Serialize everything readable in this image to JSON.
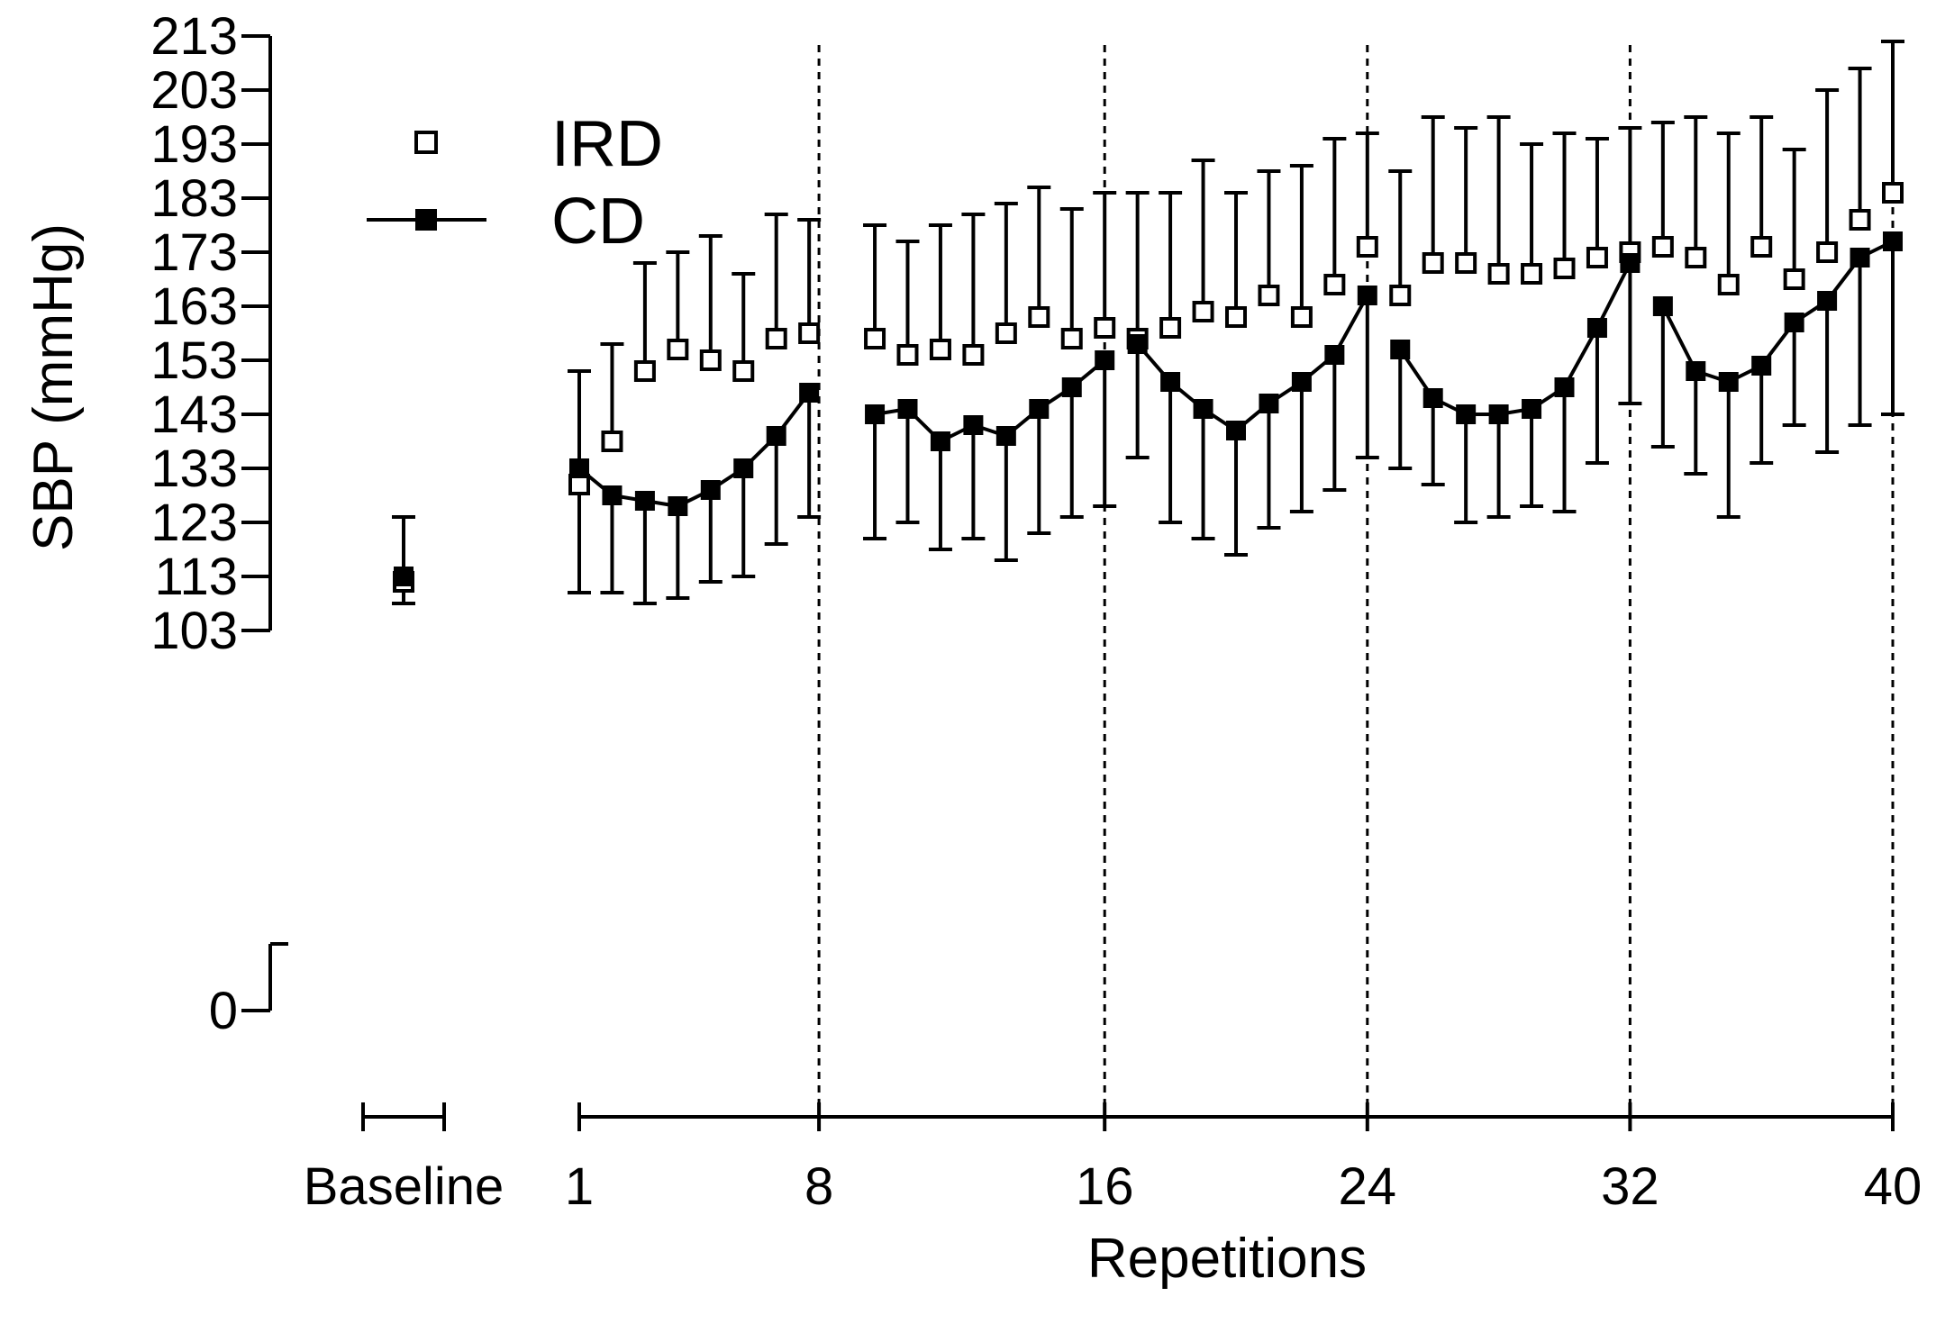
{
  "chart_data": {
    "type": "line",
    "xlabel": "Repetitions",
    "ylabel": "SBP (mmHg)",
    "y_ticks": [
      "213",
      "203",
      "193",
      "183",
      "173",
      "163",
      "153",
      "143",
      "133",
      "123",
      "113",
      "103",
      "0"
    ],
    "x_ticks": [
      "1",
      "8",
      "16",
      "24",
      "32",
      "40"
    ],
    "baseline_label": "Baseline",
    "ylim": [
      103,
      213
    ],
    "y_axis_break": true,
    "set_boundaries": [
      8,
      16,
      24,
      32,
      40
    ],
    "legend": {
      "position": "top-left",
      "entries": [
        "IRD",
        "CD"
      ]
    },
    "baseline": {
      "IRD": {
        "mean": 112,
        "sd": 12
      },
      "CD": {
        "mean": 113,
        "sd": 5
      }
    },
    "x": [
      1,
      2,
      3,
      4,
      5,
      6,
      7,
      8,
      10,
      11,
      12,
      13,
      14,
      15,
      16,
      17,
      18,
      19,
      20,
      21,
      22,
      23,
      24,
      25,
      26,
      27,
      28,
      29,
      30,
      31,
      32,
      33,
      34,
      35,
      36,
      37,
      38,
      39,
      40,
      41
    ],
    "series": [
      {
        "name": "IRD",
        "marker": "open-square",
        "connected": false,
        "values": [
          130,
          138,
          151,
          155,
          153,
          151,
          157,
          158,
          157,
          154,
          155,
          154,
          158,
          161,
          157,
          159,
          157,
          159,
          162,
          161,
          165,
          161,
          167,
          174,
          165,
          171,
          171,
          169,
          169,
          170,
          172,
          173,
          174,
          172,
          167,
          174,
          168,
          173,
          179,
          184
        ],
        "error_up": [
          21,
          18,
          20,
          18,
          23,
          18,
          23,
          21,
          21,
          21,
          23,
          26,
          24,
          24,
          24,
          25,
          27,
          25,
          28,
          23,
          23,
          28,
          27,
          21,
          23,
          27,
          25,
          29,
          24,
          25,
          22,
          23,
          23,
          26,
          28,
          24,
          24,
          30,
          28,
          28
        ],
        "error_down": [
          21,
          28,
          25,
          25,
          24,
          23,
          22,
          21,
          22,
          23,
          23,
          25,
          25,
          26,
          27,
          29,
          23,
          25,
          28,
          28,
          29,
          26,
          28,
          24,
          31,
          26,
          22,
          27,
          26,
          23,
          27,
          25,
          25,
          32,
          26,
          27,
          30,
          31,
          31,
          30
        ]
      },
      {
        "name": "CD",
        "marker": "filled-square",
        "connected": true,
        "values": [
          133,
          128,
          127,
          126,
          129,
          133,
          139,
          147,
          143,
          144,
          138,
          141,
          139,
          144,
          148,
          153,
          156,
          149,
          144,
          140,
          145,
          149,
          154,
          165,
          155,
          146,
          143,
          143,
          144,
          148,
          159,
          171,
          163,
          151,
          149,
          152,
          160,
          164,
          172,
          175
        ],
        "error_up": [
          18,
          28,
          44,
          47,
          47,
          36,
          41,
          32,
          35,
          31,
          40,
          39,
          43,
          41,
          33,
          31,
          28,
          35,
          46,
          44,
          43,
          40,
          40,
          25,
          33,
          52,
          53,
          55,
          49,
          47,
          35,
          25,
          34,
          47,
          46,
          46,
          32,
          39,
          35,
          37
        ],
        "error_down": [
          23,
          18,
          19,
          17,
          17,
          20,
          20,
          23,
          23,
          21,
          20,
          21,
          23,
          23,
          24,
          27,
          21,
          26,
          24,
          23,
          23,
          24,
          25,
          30,
          22,
          16,
          20,
          19,
          18,
          23,
          25,
          26,
          26,
          19,
          25,
          18,
          19,
          28,
          31,
          32
        ]
      }
    ]
  }
}
